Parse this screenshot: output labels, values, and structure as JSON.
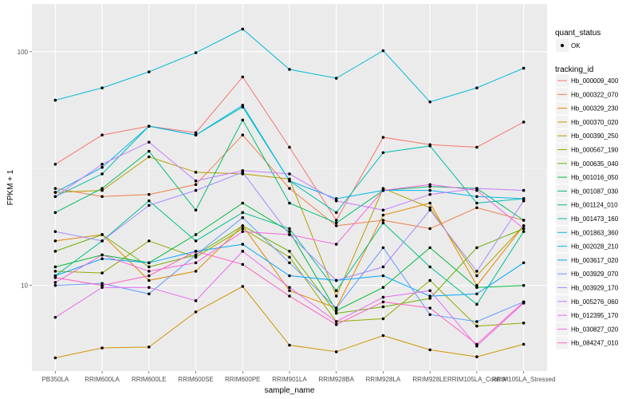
{
  "chart_data": {
    "type": "line",
    "xlabel": "sample_name",
    "ylabel": "FPKM + 1",
    "y_scale": "log10",
    "ylim": [
      4.3,
      160
    ],
    "y_ticks": [
      10,
      100
    ],
    "y_tick_labels": [
      "10",
      "100"
    ],
    "grid": true,
    "legend_position": "right",
    "categories": [
      "PB350LA",
      "RRIM600LA",
      "RRIM600LE",
      "RRIM600SE",
      "RRIM600PE",
      "RRIM901LA",
      "RRIM928BA",
      "RRIM928LA",
      "RRIM928LE",
      "RRIM105LA_Control",
      "RRIM105LA_Stressed"
    ],
    "legend_shape": {
      "title": "quant_status",
      "entries": [
        "OK"
      ]
    },
    "legend_color_title": "tracking_id",
    "series": [
      {
        "name": "Hb_000009_400",
        "color": "#F8766D",
        "values": [
          33,
          44,
          48,
          45,
          78,
          39,
          19,
          43,
          40,
          39,
          50
        ]
      },
      {
        "name": "Hb_000322_070",
        "color": "#F07F4C",
        "values": [
          26,
          24,
          24.5,
          27,
          44,
          26,
          18,
          19,
          17.5,
          21.5,
          19
        ]
      },
      {
        "name": "Hb_000329_230",
        "color": "#E38900",
        "values": [
          15.5,
          16.5,
          10.5,
          11.5,
          18,
          9.5,
          8,
          20,
          22.5,
          10,
          18
        ]
      },
      {
        "name": "Hb_000370_020",
        "color": "#D09400",
        "values": [
          4.9,
          5.4,
          5.45,
          7.7,
          9.9,
          5.55,
          5.2,
          6.1,
          5.3,
          4.95,
          5.6
        ]
      },
      {
        "name": "Hb_000390_250",
        "color": "#B79F00",
        "values": [
          25,
          25.5,
          35.5,
          30.5,
          30,
          28.5,
          9,
          26,
          21.5,
          11,
          18
        ]
      },
      {
        "name": "Hb_000567_190",
        "color": "#97A900",
        "values": [
          11.5,
          11.3,
          15.5,
          13.2,
          17.5,
          13.2,
          7,
          7.2,
          10.5,
          6.7,
          6.9
        ]
      },
      {
        "name": "Hb_000635_040",
        "color": "#6BB100",
        "values": [
          14,
          16.5,
          12,
          13.5,
          18,
          14,
          7.6,
          8.1,
          8.8,
          14.5,
          17.5
        ]
      },
      {
        "name": "Hb_001016_050",
        "color": "#00BA38",
        "values": [
          12,
          13.5,
          12.5,
          16.5,
          22.5,
          17,
          7.8,
          9.8,
          14.5,
          9.8,
          10
        ]
      },
      {
        "name": "Hb_001087_030",
        "color": "#00BE6B",
        "values": [
          20.5,
          26,
          37.5,
          21,
          51,
          22.5,
          18.5,
          25.5,
          26.5,
          26,
          19
        ]
      },
      {
        "name": "Hb_001124_010",
        "color": "#00C08E",
        "values": [
          11,
          15.5,
          23,
          15.5,
          20.5,
          17.5,
          9.5,
          18.5,
          12,
          8.3,
          17
        ]
      },
      {
        "name": "Hb_001473_160",
        "color": "#00BFAE",
        "values": [
          24,
          30,
          48,
          44,
          58,
          28,
          20.5,
          37,
          39.5,
          22.5,
          23.5
        ]
      },
      {
        "name": "Hb_001863_360",
        "color": "#00BCD8",
        "values": [
          62,
          70,
          82,
          99,
          125,
          84,
          77,
          101,
          61,
          70,
          85
        ]
      },
      {
        "name": "Hb_002028_210",
        "color": "#00B5EE",
        "values": [
          25,
          32,
          48,
          44,
          59,
          28,
          23.5,
          25.5,
          25.5,
          24,
          23.5
        ]
      },
      {
        "name": "Hb_003617_020",
        "color": "#00A8FF",
        "values": [
          11,
          13,
          12.5,
          14,
          15,
          11,
          10.5,
          11,
          9,
          9.2,
          12.5
        ]
      },
      {
        "name": "Hb_003929_070",
        "color": "#619CFF",
        "values": [
          10,
          10.2,
          9.2,
          13.5,
          19.5,
          12.5,
          8,
          14.5,
          7.5,
          7,
          8.5
        ]
      },
      {
        "name": "Hb_003929_170",
        "color": "#A58AFF",
        "values": [
          17,
          15.5,
          22,
          25.5,
          30.5,
          16.5,
          10.5,
          12,
          21,
          11.5,
          23
        ]
      },
      {
        "name": "Hb_005276_060",
        "color": "#C77CFF",
        "values": [
          24,
          33,
          41,
          28,
          31,
          30,
          23,
          21,
          24.5,
          26,
          25.5
        ]
      },
      {
        "name": "Hb_012395_170",
        "color": "#E76BF3",
        "values": [
          7.3,
          9.8,
          9.8,
          8.6,
          14,
          9.8,
          7,
          8.9,
          9.5,
          5.5,
          8.4
        ]
      },
      {
        "name": "Hb_030827_020",
        "color": "#F564E3",
        "values": [
          10.3,
          13.5,
          11.5,
          12.5,
          17,
          16.5,
          15,
          25.5,
          27,
          25.5,
          17.5
        ]
      },
      {
        "name": "Hb_084247_010",
        "color": "#FF61C3",
        "values": [
          10.8,
          10,
          11,
          14,
          12.3,
          9,
          6.8,
          8.5,
          8,
          5.6,
          8.5
        ]
      }
    ]
  }
}
